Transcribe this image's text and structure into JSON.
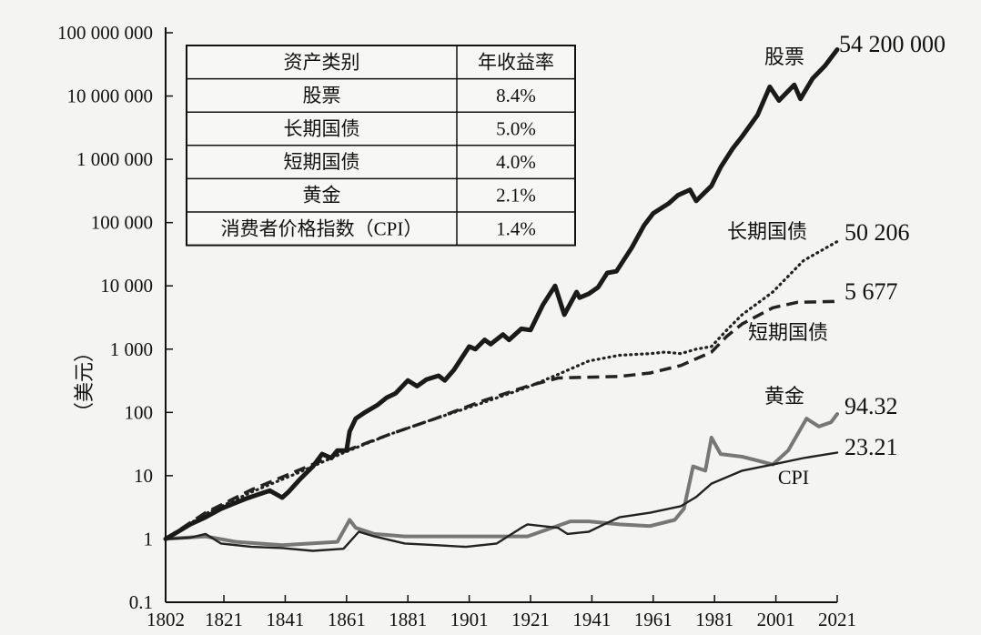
{
  "chart_data": {
    "type": "line",
    "scale": "log",
    "ylabel": "（美元）",
    "ylim": [
      0.1,
      100000000
    ],
    "xlim": [
      1802,
      2021
    ],
    "y_ticks": [
      {
        "v": 100000000,
        "label": "100 000 000"
      },
      {
        "v": 10000000,
        "label": "10 000 000"
      },
      {
        "v": 1000000,
        "label": "1 000 000"
      },
      {
        "v": 100000,
        "label": "100 000"
      },
      {
        "v": 10000,
        "label": "10 000"
      },
      {
        "v": 1000,
        "label": "1 000"
      },
      {
        "v": 100,
        "label": "100"
      },
      {
        "v": 10,
        "label": "10"
      },
      {
        "v": 1,
        "label": "1"
      },
      {
        "v": 0.1,
        "label": "0.1"
      }
    ],
    "x_ticks": [
      {
        "v": 1802,
        "label": "1802"
      },
      {
        "v": 1821,
        "label": "1821"
      },
      {
        "v": 1841,
        "label": "1841"
      },
      {
        "v": 1861,
        "label": "1861"
      },
      {
        "v": 1881,
        "label": "1881"
      },
      {
        "v": 1901,
        "label": "1901"
      },
      {
        "v": 1921,
        "label": "1921"
      },
      {
        "v": 1941,
        "label": "1941"
      },
      {
        "v": 1961,
        "label": "1961"
      },
      {
        "v": 1981,
        "label": "1981"
      },
      {
        "v": 2001,
        "label": "2001"
      },
      {
        "v": 2021,
        "label": "2021"
      }
    ],
    "series": [
      {
        "name": "股票",
        "end_label": "54 200 000",
        "style": "solid-thick",
        "color": "#1a1a1a",
        "points": [
          [
            1802,
            1
          ],
          [
            1806,
            1.3
          ],
          [
            1810,
            1.7
          ],
          [
            1815,
            2.2
          ],
          [
            1820,
            3.0
          ],
          [
            1824,
            3.6
          ],
          [
            1828,
            4.3
          ],
          [
            1832,
            5.0
          ],
          [
            1836,
            5.8
          ],
          [
            1840,
            4.5
          ],
          [
            1842,
            5.5
          ],
          [
            1846,
            9
          ],
          [
            1850,
            14
          ],
          [
            1853,
            22
          ],
          [
            1856,
            19
          ],
          [
            1858,
            25
          ],
          [
            1861,
            25
          ],
          [
            1862,
            50
          ],
          [
            1864,
            80
          ],
          [
            1867,
            100
          ],
          [
            1871,
            130
          ],
          [
            1874,
            170
          ],
          [
            1877,
            200
          ],
          [
            1881,
            320
          ],
          [
            1884,
            260
          ],
          [
            1887,
            330
          ],
          [
            1891,
            380
          ],
          [
            1893,
            320
          ],
          [
            1896,
            470
          ],
          [
            1901,
            1100
          ],
          [
            1903,
            1000
          ],
          [
            1906,
            1400
          ],
          [
            1908,
            1200
          ],
          [
            1912,
            1700
          ],
          [
            1914,
            1400
          ],
          [
            1918,
            2100
          ],
          [
            1921,
            2000
          ],
          [
            1925,
            5000
          ],
          [
            1929,
            10000
          ],
          [
            1932,
            3500
          ],
          [
            1936,
            8000
          ],
          [
            1937,
            6500
          ],
          [
            1940,
            7500
          ],
          [
            1943,
            9500
          ],
          [
            1946,
            16000
          ],
          [
            1949,
            17000
          ],
          [
            1954,
            40000
          ],
          [
            1958,
            90000
          ],
          [
            1961,
            140000
          ],
          [
            1966,
            200000
          ],
          [
            1969,
            270000
          ],
          [
            1973,
            330000
          ],
          [
            1975,
            220000
          ],
          [
            1980,
            380000
          ],
          [
            1983,
            750000
          ],
          [
            1987,
            1500000
          ],
          [
            1990,
            2300000
          ],
          [
            1995,
            5000000
          ],
          [
            1999,
            14000000
          ],
          [
            2002,
            8500000
          ],
          [
            2007,
            15000000
          ],
          [
            2009,
            9000000
          ],
          [
            2013,
            19000000
          ],
          [
            2017,
            30000000
          ],
          [
            2021,
            54200000
          ]
        ]
      },
      {
        "name": "长期国债",
        "end_label": "50 206",
        "style": "dotted",
        "color": "#222",
        "points": [
          [
            1802,
            1
          ],
          [
            1815,
            2.5
          ],
          [
            1830,
            5.5
          ],
          [
            1845,
            11
          ],
          [
            1860,
            23
          ],
          [
            1875,
            45
          ],
          [
            1890,
            80
          ],
          [
            1905,
            140
          ],
          [
            1920,
            250
          ],
          [
            1930,
            400
          ],
          [
            1940,
            650
          ],
          [
            1950,
            800
          ],
          [
            1960,
            850
          ],
          [
            1965,
            900
          ],
          [
            1970,
            850
          ],
          [
            1975,
            1000
          ],
          [
            1980,
            1100
          ],
          [
            1985,
            2000
          ],
          [
            1990,
            3500
          ],
          [
            2000,
            8000
          ],
          [
            2010,
            25000
          ],
          [
            2021,
            50206
          ]
        ]
      },
      {
        "name": "短期国债",
        "end_label": "5 677",
        "style": "dashed",
        "color": "#222",
        "points": [
          [
            1802,
            1
          ],
          [
            1815,
            2.6
          ],
          [
            1830,
            6
          ],
          [
            1845,
            12
          ],
          [
            1860,
            24
          ],
          [
            1875,
            45
          ],
          [
            1890,
            80
          ],
          [
            1905,
            150
          ],
          [
            1920,
            260
          ],
          [
            1930,
            350
          ],
          [
            1940,
            360
          ],
          [
            1950,
            370
          ],
          [
            1960,
            420
          ],
          [
            1970,
            550
          ],
          [
            1980,
            900
          ],
          [
            1985,
            1600
          ],
          [
            1990,
            2500
          ],
          [
            2000,
            4500
          ],
          [
            2008,
            5500
          ],
          [
            2021,
            5677
          ]
        ]
      },
      {
        "name": "黄金",
        "end_label": "94.32",
        "style": "solid-gray",
        "color": "#777",
        "points": [
          [
            1802,
            1
          ],
          [
            1815,
            1.1
          ],
          [
            1825,
            0.9
          ],
          [
            1840,
            0.8
          ],
          [
            1858,
            0.9
          ],
          [
            1862,
            2.0
          ],
          [
            1864,
            1.5
          ],
          [
            1870,
            1.2
          ],
          [
            1880,
            1.1
          ],
          [
            1900,
            1.1
          ],
          [
            1920,
            1.1
          ],
          [
            1934,
            1.9
          ],
          [
            1940,
            1.9
          ],
          [
            1950,
            1.7
          ],
          [
            1960,
            1.6
          ],
          [
            1968,
            2.0
          ],
          [
            1971,
            3.0
          ],
          [
            1974,
            14
          ],
          [
            1978,
            12
          ],
          [
            1980,
            40
          ],
          [
            1983,
            22
          ],
          [
            1990,
            20
          ],
          [
            2000,
            15
          ],
          [
            2005,
            25
          ],
          [
            2011,
            80
          ],
          [
            2015,
            60
          ],
          [
            2019,
            70
          ],
          [
            2021,
            94.32
          ]
        ]
      },
      {
        "name": "CPI",
        "end_label": "23.21",
        "style": "solid-thin",
        "color": "#222",
        "points": [
          [
            1802,
            1
          ],
          [
            1810,
            1.05
          ],
          [
            1815,
            1.2
          ],
          [
            1820,
            0.85
          ],
          [
            1830,
            0.75
          ],
          [
            1840,
            0.72
          ],
          [
            1850,
            0.65
          ],
          [
            1860,
            0.7
          ],
          [
            1865,
            1.3
          ],
          [
            1870,
            1.1
          ],
          [
            1880,
            0.85
          ],
          [
            1890,
            0.8
          ],
          [
            1900,
            0.75
          ],
          [
            1910,
            0.85
          ],
          [
            1918,
            1.5
          ],
          [
            1920,
            1.7
          ],
          [
            1930,
            1.5
          ],
          [
            1933,
            1.2
          ],
          [
            1940,
            1.3
          ],
          [
            1946,
            1.8
          ],
          [
            1950,
            2.2
          ],
          [
            1960,
            2.6
          ],
          [
            1970,
            3.3
          ],
          [
            1975,
            4.6
          ],
          [
            1980,
            7.5
          ],
          [
            1990,
            12
          ],
          [
            2000,
            15
          ],
          [
            2010,
            19
          ],
          [
            2021,
            23.21
          ]
        ]
      }
    ],
    "table": {
      "headers": [
        "资产类别",
        "年收益率"
      ],
      "rows": [
        [
          "股票",
          "8.4%"
        ],
        [
          "长期国债",
          "5.0%"
        ],
        [
          "短期国债",
          "4.0%"
        ],
        [
          "黄金",
          "2.1%"
        ],
        [
          "消费者价格指数（CPI）",
          "1.4%"
        ]
      ]
    }
  }
}
